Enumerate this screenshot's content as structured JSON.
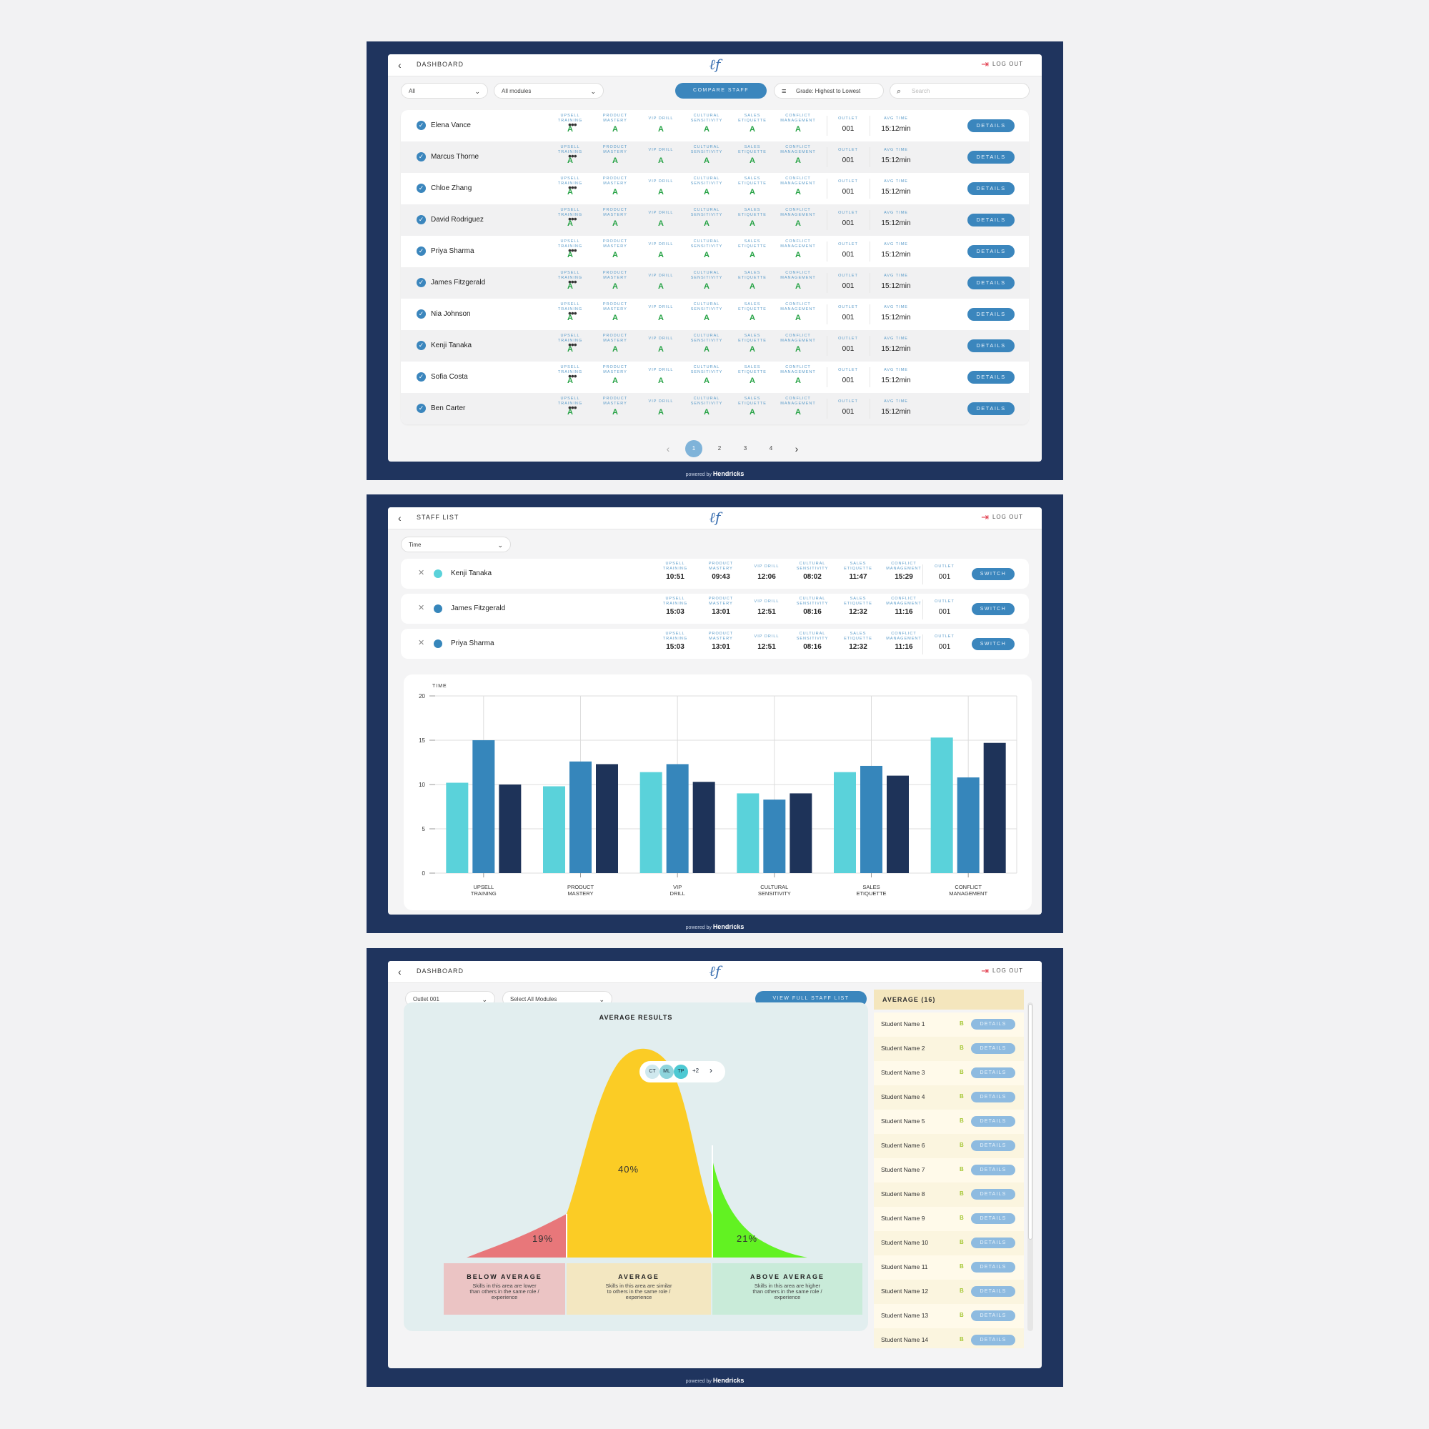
{
  "colors": {
    "frame": "#1f345e",
    "accent": "#3b86bd",
    "grade": "#25a244",
    "teal": "#5ad2da",
    "mid": "#3686bb",
    "navy": "#1e3359"
  },
  "footer": {
    "powered_by": "powered by",
    "brand": "Hendricks"
  },
  "screen1": {
    "crumb": "DASHBOARD",
    "logout": "LOG OUT",
    "filter_all": "All",
    "filter_modules": "All modules",
    "compare_button": "COMPARE STAFF",
    "sort_label": "Grade: Highest to Lowest",
    "search_placeholder": "Search",
    "col_headers": [
      "UPSELL TRAINING",
      "PRODUCT MASTERY",
      "VIP DRILL",
      "CULTURAL SENSITIVITY",
      "SALES ETIQUETTE",
      "CONFLICT MANAGEMENT"
    ],
    "outlet_header": "OUTLET",
    "avg_time_header": "AVG TIME",
    "details_label": "DETAILS",
    "rows": [
      {
        "name": "Elena Vance",
        "grades": [
          "A",
          "A",
          "A",
          "A",
          "A",
          "A"
        ],
        "outlet": "001",
        "avg_time": "15:12min"
      },
      {
        "name": "Marcus Thorne",
        "grades": [
          "A",
          "A",
          "A",
          "A",
          "A",
          "A"
        ],
        "outlet": "001",
        "avg_time": "15:12min"
      },
      {
        "name": "Chloe Zhang",
        "grades": [
          "A",
          "A",
          "A",
          "A",
          "A",
          "A"
        ],
        "outlet": "001",
        "avg_time": "15:12min"
      },
      {
        "name": "David Rodriguez",
        "grades": [
          "A",
          "A",
          "A",
          "A",
          "A",
          "A"
        ],
        "outlet": "001",
        "avg_time": "15:12min"
      },
      {
        "name": "Priya Sharma",
        "grades": [
          "A",
          "A",
          "A",
          "A",
          "A",
          "A"
        ],
        "outlet": "001",
        "avg_time": "15:12min"
      },
      {
        "name": "James Fitzgerald",
        "grades": [
          "A",
          "A",
          "A",
          "A",
          "A",
          "A"
        ],
        "outlet": "001",
        "avg_time": "15:12min"
      },
      {
        "name": "Nia Johnson",
        "grades": [
          "A",
          "A",
          "A",
          "A",
          "A",
          "A"
        ],
        "outlet": "001",
        "avg_time": "15:12min"
      },
      {
        "name": "Kenji Tanaka",
        "grades": [
          "A",
          "A",
          "A",
          "A",
          "A",
          "A"
        ],
        "outlet": "001",
        "avg_time": "15:12min"
      },
      {
        "name": "Sofia Costa",
        "grades": [
          "A",
          "A",
          "A",
          "A",
          "A",
          "A"
        ],
        "outlet": "001",
        "avg_time": "15:12min"
      },
      {
        "name": "Ben Carter",
        "grades": [
          "A",
          "A",
          "A",
          "A",
          "A",
          "A"
        ],
        "outlet": "001",
        "avg_time": "15:12min"
      }
    ],
    "pages": [
      "1",
      "2",
      "3",
      "4"
    ],
    "current_page": "1"
  },
  "screen2": {
    "crumb": "STAFF LIST",
    "logout": "LOG OUT",
    "filter_time": "Time",
    "switch_label": "SWITCH",
    "compare_rows": [
      {
        "name": "Kenji Tanaka",
        "dot": "#5ad2da",
        "times": [
          "10:51",
          "09:43",
          "12:06",
          "08:02",
          "11:47",
          "15:29"
        ],
        "outlet": "001"
      },
      {
        "name": "James Fitzgerald",
        "dot": "#3686bb",
        "times": [
          "15:03",
          "13:01",
          "12:51",
          "08:16",
          "12:32",
          "11:16"
        ],
        "outlet": "001"
      },
      {
        "name": "Priya Sharma",
        "dot": "#3686bb",
        "times": [
          "15:03",
          "13:01",
          "12:51",
          "08:16",
          "12:32",
          "11:16"
        ],
        "outlet": "001"
      }
    ]
  },
  "chart_data": {
    "type": "bar",
    "ylabel": "TIME",
    "ylim": [
      0,
      20
    ],
    "yticks": [
      0,
      5,
      10,
      15,
      20
    ],
    "categories": [
      "UPSELL TRAINING",
      "PRODUCT MASTERY",
      "VIP DRILL",
      "CULTURAL SENSITIVITY",
      "SALES ETIQUETTE",
      "CONFLICT MANAGEMENT"
    ],
    "series": [
      {
        "color": "#5ad2da",
        "values": [
          10.2,
          9.8,
          11.4,
          9.0,
          11.4,
          15.3
        ]
      },
      {
        "color": "#3686bb",
        "values": [
          15.0,
          12.6,
          12.3,
          8.3,
          12.1,
          10.8
        ]
      },
      {
        "color": "#1e3359",
        "values": [
          10.0,
          12.3,
          10.3,
          9.0,
          11.0,
          14.7
        ]
      }
    ],
    "grid": true
  },
  "screen3": {
    "crumb": "DASHBOARD",
    "logout": "LOG OUT",
    "filter_outlet": "Outlet 001",
    "filter_modules": "Select All Modules",
    "view_button": "VIEW FULL STAFF LIST",
    "panel_title": "AVERAGE RESULTS",
    "avatars": [
      "CT",
      "ML",
      "TP"
    ],
    "avatar_more": "+2",
    "pct_below": "19%",
    "pct_avg": "40%",
    "pct_above": "21%",
    "categories": [
      {
        "title": "BELOW AVERAGE",
        "desc": "Skills in this area are lower than others in the same role / experience",
        "color": "#ebc4c4"
      },
      {
        "title": "AVERAGE",
        "desc": "Skills in this area are similar to others in the same role / experience",
        "color": "#f3e7c1"
      },
      {
        "title": "ABOVE AVERAGE",
        "desc": "Skills in this area are higher than others in the same role / experience",
        "color": "#c9ebd9"
      }
    ],
    "average_header": "AVERAGE (16)",
    "students": [
      {
        "name": "Student Name 1",
        "grade": "B"
      },
      {
        "name": "Student Name 2",
        "grade": "B"
      },
      {
        "name": "Student Name 3",
        "grade": "B"
      },
      {
        "name": "Student Name 4",
        "grade": "B"
      },
      {
        "name": "Student Name 5",
        "grade": "B"
      },
      {
        "name": "Student Name 6",
        "grade": "B"
      },
      {
        "name": "Student Name 7",
        "grade": "B"
      },
      {
        "name": "Student Name 8",
        "grade": "B"
      },
      {
        "name": "Student Name 9",
        "grade": "B"
      },
      {
        "name": "Student Name 10",
        "grade": "B"
      },
      {
        "name": "Student Name 11",
        "grade": "B"
      },
      {
        "name": "Student Name 12",
        "grade": "B"
      },
      {
        "name": "Student Name 13",
        "grade": "B"
      },
      {
        "name": "Student Name 14",
        "grade": "B"
      }
    ],
    "details_label": "DETAILS"
  }
}
